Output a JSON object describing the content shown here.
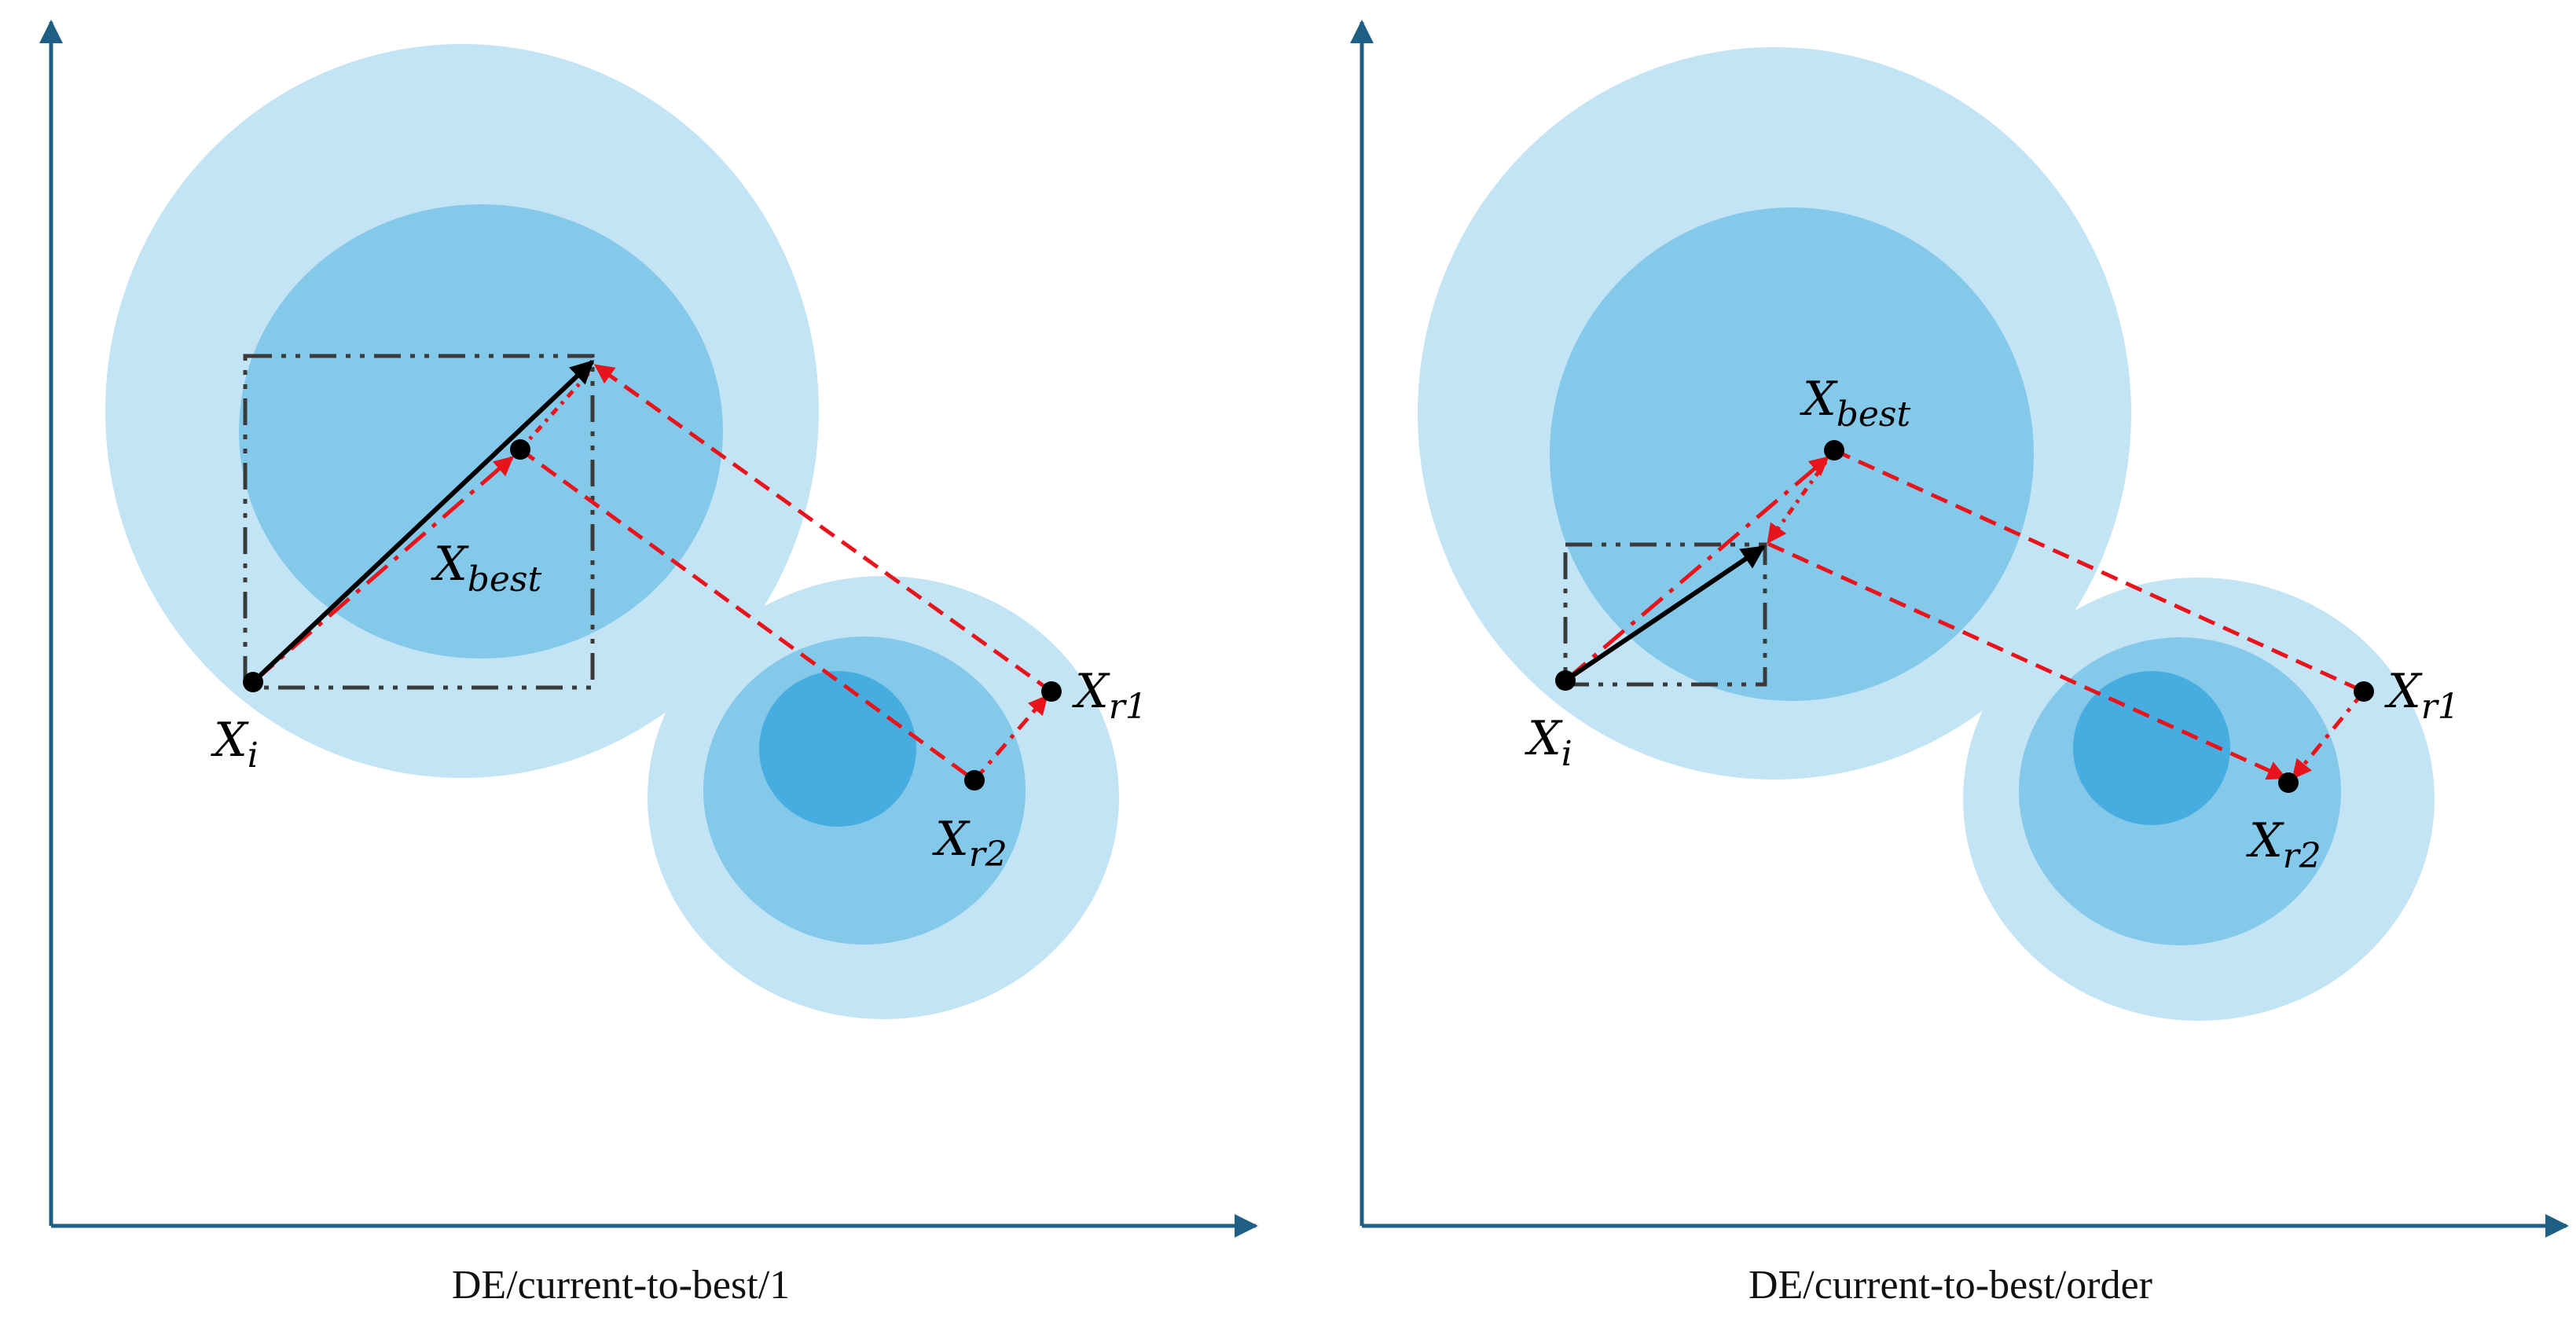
{
  "colors": {
    "axis": "#1f5f86",
    "outer_region": "#c3e4f4",
    "middle_region": "#85c9ea",
    "inner_region": "#47ade0",
    "red_path": "#e8141b",
    "black_vector": "#000000",
    "box": "#3a3a3a"
  },
  "panels": [
    {
      "caption": "DE/current-to-best/1",
      "points": {
        "x_i": {
          "main": "X",
          "sub": "i"
        },
        "x_best": {
          "main": "X",
          "sub": "best"
        },
        "x_r1": {
          "main": "X",
          "sub": "r1"
        },
        "x_r2": {
          "main": "X",
          "sub": "r2"
        }
      }
    },
    {
      "caption": "DE/current-to-best/order",
      "points": {
        "x_i": {
          "main": "X",
          "sub": "i"
        },
        "x_best": {
          "main": "X",
          "sub": "best"
        },
        "x_r1": {
          "main": "X",
          "sub": "r1"
        },
        "x_r2": {
          "main": "X",
          "sub": "r2"
        }
      }
    }
  ]
}
